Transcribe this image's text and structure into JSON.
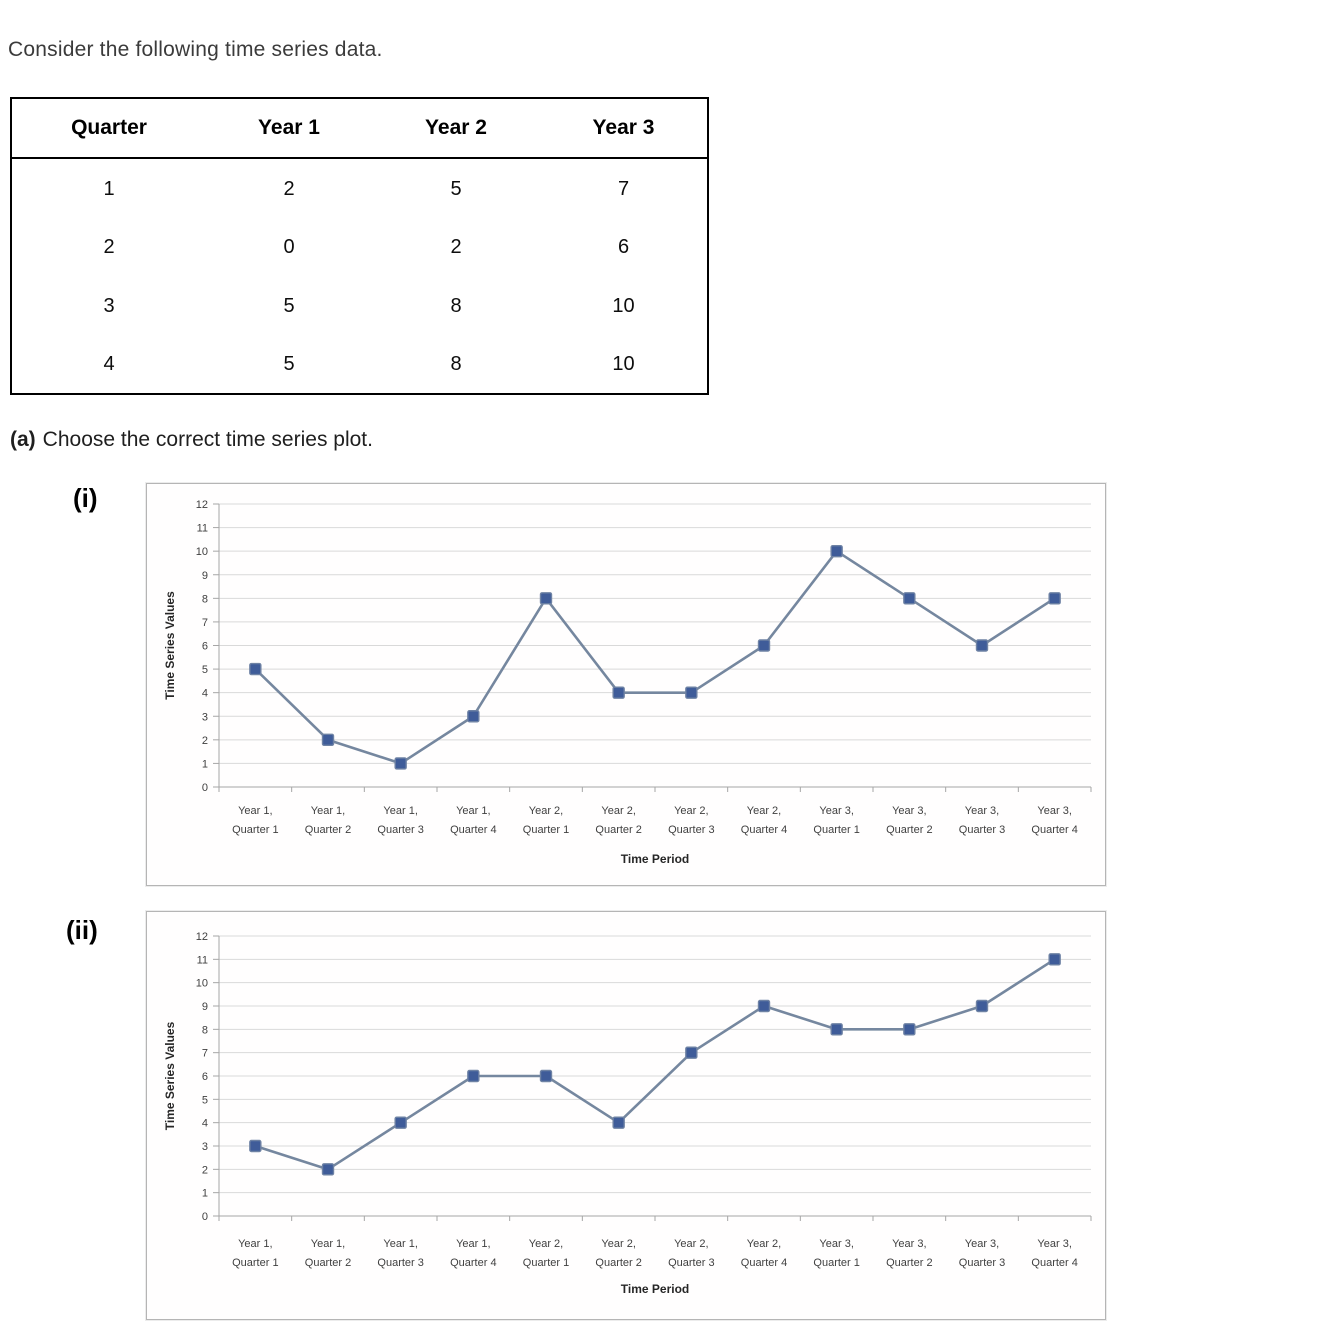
{
  "page": {
    "intro": "Consider the following time series data.",
    "question_prefix": "(a)",
    "question_text": "Choose the correct time series plot."
  },
  "table": {
    "headers": [
      "Quarter",
      "Year 1",
      "Year 2",
      "Year 3"
    ],
    "rows": [
      [
        "1",
        "2",
        "5",
        "7"
      ],
      [
        "2",
        "0",
        "2",
        "6"
      ],
      [
        "3",
        "5",
        "8",
        "10"
      ],
      [
        "4",
        "5",
        "8",
        "10"
      ]
    ]
  },
  "chart_style": {
    "grid_color": "#d9d9d9",
    "axis_color": "#a6a6a6",
    "tick_label_color": "#3f3f3f"
  },
  "chart_data": [
    {
      "option_label": "(i)",
      "type": "line",
      "categories": [
        [
          "Year 1,",
          "Quarter 1"
        ],
        [
          "Year 1,",
          "Quarter 2"
        ],
        [
          "Year 1,",
          "Quarter 3"
        ],
        [
          "Year 1,",
          "Quarter 4"
        ],
        [
          "Year 2,",
          "Quarter 1"
        ],
        [
          "Year 2,",
          "Quarter 2"
        ],
        [
          "Year 2,",
          "Quarter 3"
        ],
        [
          "Year 2,",
          "Quarter 4"
        ],
        [
          "Year 3,",
          "Quarter 1"
        ],
        [
          "Year 3,",
          "Quarter 2"
        ],
        [
          "Year 3,",
          "Quarter 3"
        ],
        [
          "Year 3,",
          "Quarter 4"
        ]
      ],
      "values": [
        5,
        2,
        1,
        3,
        8,
        4,
        4,
        6,
        10,
        8,
        6,
        8
      ],
      "title": "",
      "xlabel": "Time Period",
      "ylabel": "Time Series Values",
      "ylim": [
        0,
        12
      ],
      "ytick_step": 1,
      "grid": true,
      "legend": false,
      "line_color": "#75879f",
      "marker_color": "#3f5c99",
      "marker_stroke": "#6e82a4",
      "marker_shape": "square"
    },
    {
      "option_label": "(ii)",
      "type": "line",
      "categories": [
        [
          "Year 1,",
          "Quarter 1"
        ],
        [
          "Year 1,",
          "Quarter 2"
        ],
        [
          "Year 1,",
          "Quarter 3"
        ],
        [
          "Year 1,",
          "Quarter 4"
        ],
        [
          "Year 2,",
          "Quarter 1"
        ],
        [
          "Year 2,",
          "Quarter 2"
        ],
        [
          "Year 2,",
          "Quarter 3"
        ],
        [
          "Year 2,",
          "Quarter 4"
        ],
        [
          "Year 3,",
          "Quarter 1"
        ],
        [
          "Year 3,",
          "Quarter 2"
        ],
        [
          "Year 3,",
          "Quarter 3"
        ],
        [
          "Year 3,",
          "Quarter 4"
        ]
      ],
      "values": [
        3,
        2,
        4,
        6,
        6,
        4,
        7,
        9,
        8,
        8,
        9,
        11
      ],
      "title": "",
      "xlabel": "Time Period",
      "ylabel": "Time Series Values",
      "ylim": [
        0,
        12
      ],
      "ytick_step": 1,
      "grid": true,
      "legend": false,
      "line_color": "#75879f",
      "marker_color": "#3f5c99",
      "marker_stroke": "#6e82a4",
      "marker_shape": "square"
    }
  ]
}
